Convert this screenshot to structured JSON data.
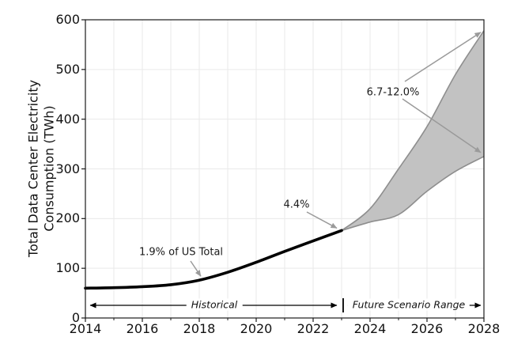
{
  "chart_data": {
    "type": "line",
    "title": "",
    "xlabel": "",
    "ylabel": "Total Data Center Electricity Consumption (TWh)",
    "ylabel_line1": "Total Data Center Electricity",
    "ylabel_line2": "Consumption (TWh)",
    "xlim": [
      2014,
      2028
    ],
    "ylim": [
      0,
      600
    ],
    "xticks": [
      "2014",
      "2016",
      "2018",
      "2020",
      "2022",
      "2024",
      "2026",
      "2028"
    ],
    "xticks_minor": [
      2015,
      2017,
      2019,
      2021,
      2023,
      2025,
      2027
    ],
    "yticks": [
      "0",
      "100",
      "200",
      "300",
      "400",
      "500",
      "600"
    ],
    "grid": "on",
    "grid_x_years": [
      2015,
      2016,
      2017,
      2018,
      2019,
      2020,
      2021,
      2022,
      2023,
      2024,
      2025,
      2026,
      2027
    ],
    "grid_y_values": [
      100,
      200,
      300,
      400,
      500
    ],
    "series": [
      {
        "name": "Historical",
        "style": "solid-line",
        "color": "#000000",
        "x": [
          2014,
          2015,
          2016,
          2017,
          2018,
          2019,
          2020,
          2021,
          2022,
          2023
        ],
        "values": [
          60,
          61,
          63,
          67,
          76,
          92,
          112,
          134,
          155,
          176
        ]
      },
      {
        "name": "Future Scenario Range (high)",
        "style": "band-upper-edge",
        "color": "#8e8e8e",
        "x": [
          2023,
          2024,
          2025,
          2026,
          2027,
          2028
        ],
        "values": [
          176,
          220,
          300,
          385,
          490,
          578
        ]
      },
      {
        "name": "Future Scenario Range (low)",
        "style": "band-lower-edge",
        "color": "#8e8e8e",
        "x": [
          2023,
          2024,
          2025,
          2026,
          2027,
          2028
        ],
        "values": [
          176,
          193,
          208,
          255,
          295,
          325
        ]
      }
    ],
    "annotations": [
      {
        "text": "1.9% of US Total",
        "points_at": {
          "year": 2018,
          "value": 76
        }
      },
      {
        "text": "4.4%",
        "points_at": {
          "year": 2023,
          "value": 176
        }
      },
      {
        "text": "6.7-12.0%",
        "points_at": {
          "year": 2028,
          "value_high": 578,
          "value_low": 325
        }
      }
    ],
    "range_labels": [
      {
        "text": "Historical",
        "span_years": [
          2014,
          2023
        ]
      },
      {
        "text": "Future Scenario Range",
        "span_years": [
          2023,
          2028
        ]
      }
    ],
    "colors": {
      "historical_line": "#000000",
      "band_fill": "#c2c2c2",
      "band_edge": "#8e8e8e",
      "annotation_arrow": "#9a9a9a",
      "range_arrow": "#000000",
      "grid": "#e9e9e9",
      "axis": "#1a1a1a",
      "background": "#ffffff"
    }
  }
}
